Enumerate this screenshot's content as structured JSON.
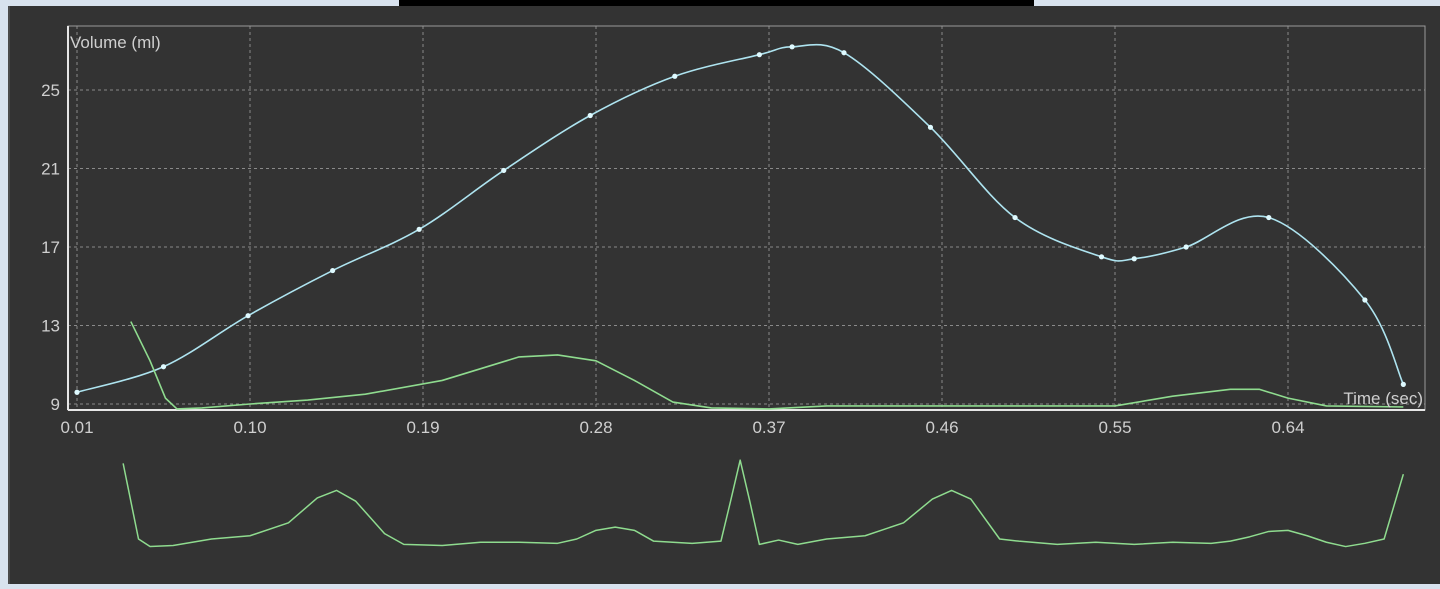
{
  "chart_data": {
    "type": "line",
    "xlabel": "Time (sec)",
    "ylabel": "Volume (ml)",
    "xlim": [
      0.01,
      0.7
    ],
    "ylim": [
      8.7,
      27.9
    ],
    "x_ticks": [
      "0.01",
      "0.10",
      "0.19",
      "0.28",
      "0.37",
      "0.46",
      "0.55",
      "0.64"
    ],
    "x_tick_values": [
      0.01,
      0.1,
      0.19,
      0.28,
      0.37,
      0.46,
      0.55,
      0.64
    ],
    "y_ticks": [
      "9",
      "13",
      "17",
      "21",
      "25"
    ],
    "y_tick_values": [
      9,
      13,
      17,
      21,
      25
    ],
    "grid": true,
    "series": [
      {
        "color": "#aee4f0",
        "marker_color": "#dffaff",
        "has_markers": true,
        "smooth": true,
        "points": [
          [
            0.01,
            9.6
          ],
          [
            0.055,
            10.9
          ],
          [
            0.099,
            13.5
          ],
          [
            0.143,
            15.8
          ],
          [
            0.188,
            17.9
          ],
          [
            0.232,
            20.9
          ],
          [
            0.277,
            23.7
          ],
          [
            0.321,
            25.7
          ],
          [
            0.365,
            26.8
          ],
          [
            0.382,
            27.2
          ],
          [
            0.409,
            26.9
          ],
          [
            0.454,
            23.1
          ],
          [
            0.498,
            18.5
          ],
          [
            0.543,
            16.5
          ],
          [
            0.56,
            16.4
          ],
          [
            0.587,
            17.0
          ],
          [
            0.63,
            18.5
          ],
          [
            0.68,
            14.3
          ],
          [
            0.7,
            10.0
          ]
        ]
      },
      {
        "color": "#8fdc8f",
        "has_markers": false,
        "smooth": false,
        "points": [
          [
            0.038,
            13.2
          ],
          [
            0.048,
            11.2
          ],
          [
            0.056,
            9.3
          ],
          [
            0.062,
            8.75
          ],
          [
            0.075,
            8.8
          ],
          [
            0.1,
            9.0
          ],
          [
            0.13,
            9.2
          ],
          [
            0.16,
            9.5
          ],
          [
            0.2,
            10.2
          ],
          [
            0.22,
            10.8
          ],
          [
            0.24,
            11.4
          ],
          [
            0.26,
            11.5
          ],
          [
            0.28,
            11.2
          ],
          [
            0.3,
            10.2
          ],
          [
            0.32,
            9.1
          ],
          [
            0.34,
            8.8
          ],
          [
            0.37,
            8.75
          ],
          [
            0.4,
            8.9
          ],
          [
            0.45,
            8.9
          ],
          [
            0.5,
            8.9
          ],
          [
            0.55,
            8.9
          ],
          [
            0.58,
            9.4
          ],
          [
            0.61,
            9.75
          ],
          [
            0.625,
            9.75
          ],
          [
            0.64,
            9.3
          ],
          [
            0.66,
            8.9
          ],
          [
            0.7,
            8.85
          ]
        ]
      }
    ],
    "trace": {
      "color": "#8fdc8f",
      "y_range": [
        0,
        100
      ],
      "points": [
        [
          0.034,
          95
        ],
        [
          0.042,
          25
        ],
        [
          0.048,
          18
        ],
        [
          0.06,
          19
        ],
        [
          0.08,
          25
        ],
        [
          0.1,
          28
        ],
        [
          0.12,
          40
        ],
        [
          0.135,
          63
        ],
        [
          0.145,
          70
        ],
        [
          0.155,
          60
        ],
        [
          0.17,
          30
        ],
        [
          0.18,
          20
        ],
        [
          0.2,
          19
        ],
        [
          0.22,
          22
        ],
        [
          0.24,
          22
        ],
        [
          0.26,
          21
        ],
        [
          0.27,
          25
        ],
        [
          0.28,
          33
        ],
        [
          0.29,
          36
        ],
        [
          0.3,
          33
        ],
        [
          0.31,
          23
        ],
        [
          0.33,
          21
        ],
        [
          0.345,
          23
        ],
        [
          0.35,
          60
        ],
        [
          0.355,
          98
        ],
        [
          0.36,
          60
        ],
        [
          0.365,
          20
        ],
        [
          0.375,
          24
        ],
        [
          0.385,
          20
        ],
        [
          0.4,
          25
        ],
        [
          0.42,
          28
        ],
        [
          0.44,
          40
        ],
        [
          0.455,
          62
        ],
        [
          0.465,
          70
        ],
        [
          0.475,
          62
        ],
        [
          0.49,
          25
        ],
        [
          0.5,
          23
        ],
        [
          0.52,
          20
        ],
        [
          0.54,
          22
        ],
        [
          0.56,
          20
        ],
        [
          0.58,
          22
        ],
        [
          0.6,
          21
        ],
        [
          0.61,
          23
        ],
        [
          0.62,
          27
        ],
        [
          0.63,
          32
        ],
        [
          0.64,
          33
        ],
        [
          0.65,
          28
        ],
        [
          0.66,
          22
        ],
        [
          0.67,
          18
        ],
        [
          0.68,
          21
        ],
        [
          0.69,
          25
        ],
        [
          0.7,
          85
        ]
      ]
    }
  }
}
